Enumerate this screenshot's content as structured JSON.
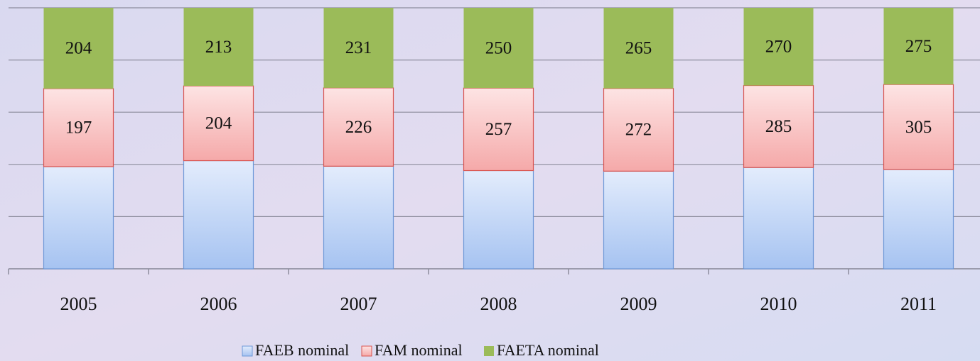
{
  "chart_data": {
    "type": "bar",
    "stacking": "percent",
    "categories": [
      "2005",
      "2006",
      "2007",
      "2008",
      "2009",
      "2010",
      "2011"
    ],
    "series": [
      {
        "name": "FAEB nominal",
        "color": "#bcd3f6",
        "values": [
          258,
          295,
          296,
          306,
          321,
          352,
          356
        ]
      },
      {
        "name": "FAM nominal",
        "color": "#f9c3c3",
        "values": [
          197,
          204,
          226,
          257,
          272,
          285,
          305
        ]
      },
      {
        "name": "FAETA nominal",
        "color": "#9bbb59",
        "values": [
          204,
          213,
          231,
          250,
          265,
          270,
          275
        ]
      }
    ],
    "data_labels": [
      false,
      true,
      true
    ],
    "ylim": [
      0,
      100
    ],
    "yticks": [
      0,
      20,
      40,
      60,
      80,
      100
    ],
    "grid": true,
    "legend": "bottom"
  }
}
